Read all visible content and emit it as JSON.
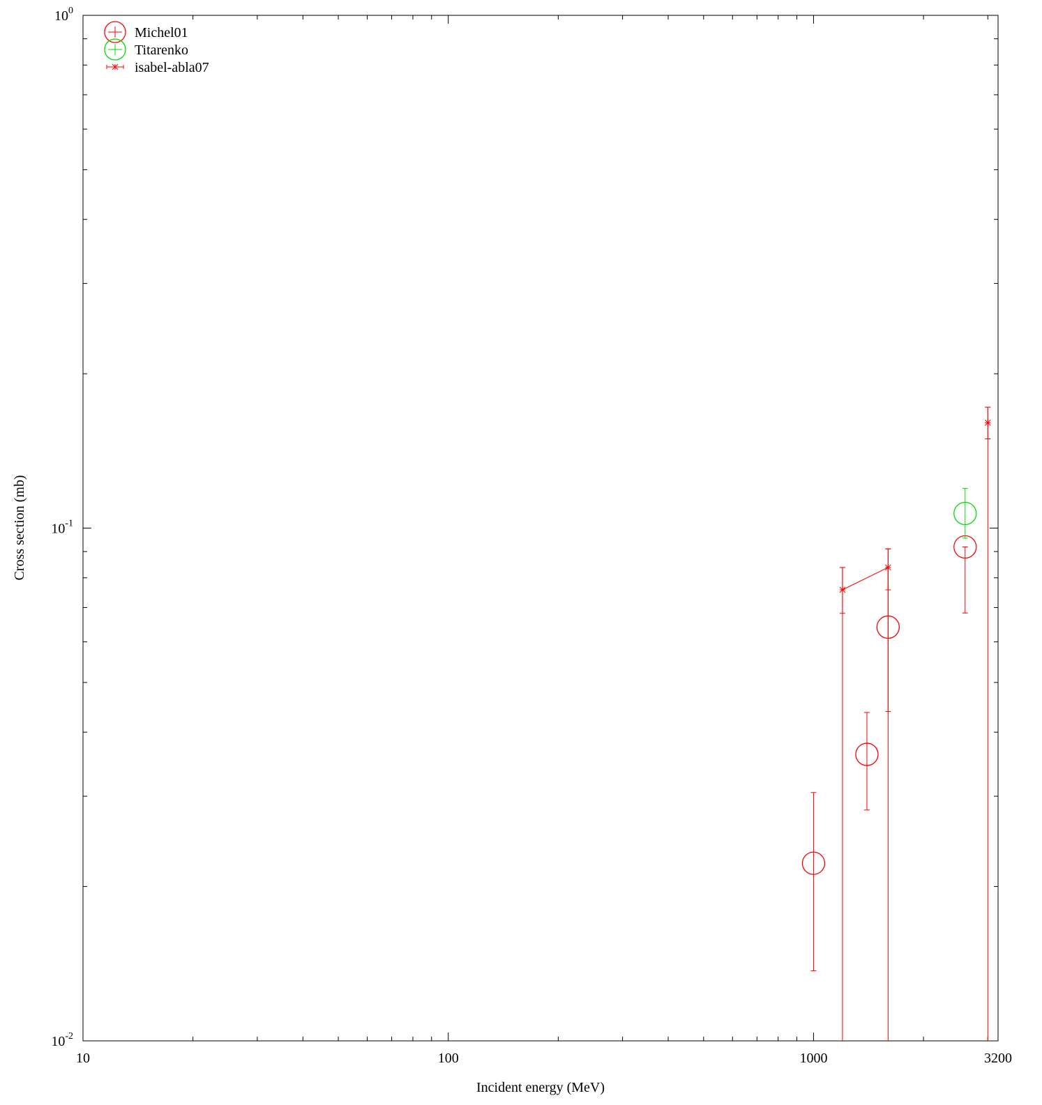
{
  "chart_data": {
    "type": "scatter",
    "title": "",
    "xlabel": "Incident energy (MeV)",
    "ylabel": "Cross section (mb)",
    "xscale": "log",
    "yscale": "log",
    "xlim": [
      10,
      3200
    ],
    "ylim": [
      0.01,
      1
    ],
    "grid": false,
    "legend_position": "top-left",
    "x_ticks": [
      {
        "value": 10,
        "label": "10"
      },
      {
        "value": 100,
        "label": "100"
      },
      {
        "value": 1000,
        "label": "1000"
      },
      {
        "value": 3200,
        "label": "3200"
      }
    ],
    "y_ticks": [
      {
        "value": 0.01,
        "base": "10",
        "exp": "-2"
      },
      {
        "value": 0.1,
        "base": "10",
        "exp": "-1"
      },
      {
        "value": 1,
        "base": "10",
        "exp": "0"
      }
    ],
    "series": [
      {
        "name": "Michel01",
        "color": "#ff0000",
        "marker": "circle",
        "points": [
          {
            "x": 1000,
            "y": 0.0222,
            "ylow": 0.0137,
            "yhigh": 0.0305
          },
          {
            "x": 1400,
            "y": 0.0362,
            "ylow": 0.0282,
            "yhigh": 0.0437
          },
          {
            "x": 1600,
            "y": 0.0641,
            "ylow": 0.0439,
            "yhigh": 0.0911
          },
          {
            "x": 2600,
            "y": 0.0919,
            "ylow": 0.0683,
            "yhigh": 0.0919
          }
        ]
      },
      {
        "name": "Titarenko",
        "color": "#00dd00",
        "marker": "circle",
        "points": [
          {
            "x": 2600,
            "y": 0.1068,
            "ylow": 0.0956,
            "yhigh": 0.1195
          }
        ]
      },
      {
        "name": "isabel-abla07",
        "color": "#ff0000",
        "marker": "star",
        "connected": true,
        "points": [
          {
            "x": 1200,
            "y": 0.0758,
            "ylow": 0.0682,
            "yhigh": 0.0838
          },
          {
            "x": 1600,
            "y": 0.0838,
            "ylow": 0.0758,
            "yhigh": 0.0838
          }
        ]
      },
      {
        "name": "",
        "color": "#ff0000",
        "marker": "star",
        "connected": false,
        "points": [
          {
            "x": 3000,
            "y": 0.1605,
            "ylow": 0.1493,
            "yhigh": 0.1721
          }
        ]
      }
    ],
    "extra_error_bars": [
      {
        "x": 1200,
        "ylow": 0.01,
        "yhigh": 0.0838
      },
      {
        "x": 1600,
        "ylow": 0.01,
        "yhigh": 0.0911
      },
      {
        "x": 3000,
        "ylow": 0.01,
        "yhigh": 0.1721
      }
    ]
  }
}
